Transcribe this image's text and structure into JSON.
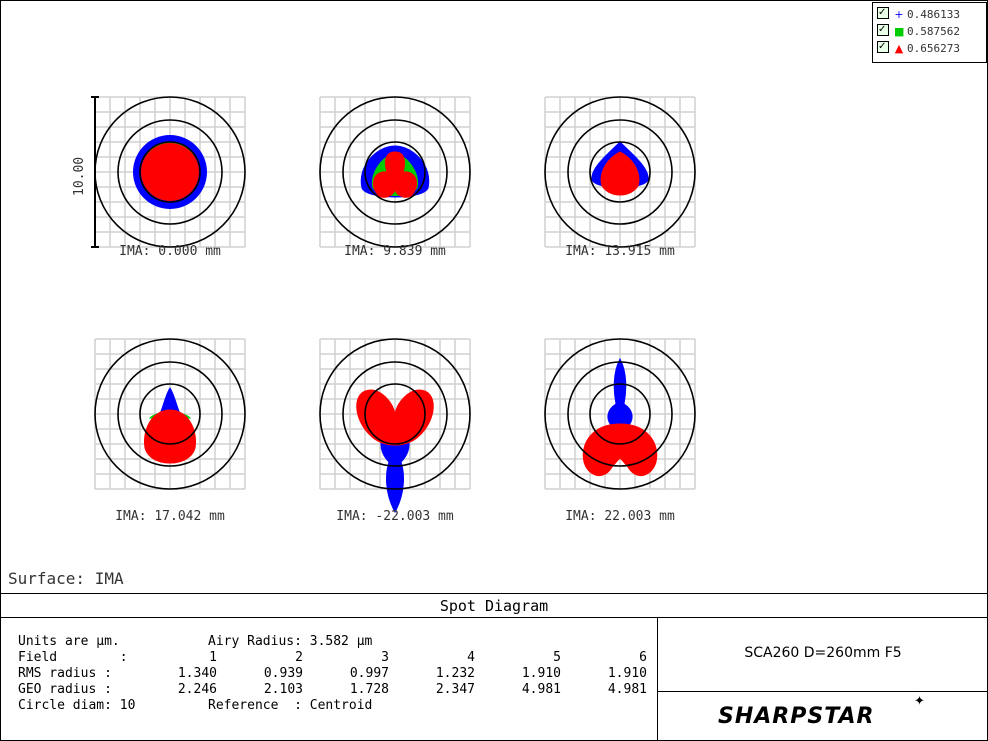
{
  "legend": {
    "items": [
      {
        "value": "0.486133",
        "marker": "+",
        "color": "#0000ff"
      },
      {
        "value": "0.587562",
        "marker": "■",
        "color": "#00cc00"
      },
      {
        "value": "0.656273",
        "marker": "▲",
        "color": "#ff0000"
      }
    ]
  },
  "plots": [
    {
      "label": "IMA: 0.000 mm"
    },
    {
      "label": "IMA: 9.839 mm"
    },
    {
      "label": "IMA: 13.915 mm"
    },
    {
      "label": "IMA: 17.042 mm"
    },
    {
      "label": "IMA: -22.003 mm"
    },
    {
      "label": "IMA: 22.003 mm"
    }
  ],
  "scale_bar": "10.00",
  "surface": "Surface: IMA",
  "title": "Spot Diagram",
  "info": {
    "units": "Units are µm.",
    "airy": "Airy Radius: 3.582 µm",
    "field_label": "Field        :",
    "rms_label": "RMS radius :",
    "geo_label": "GEO radius :",
    "circle": "Circle diam: 10",
    "reference": "Reference  : Centroid",
    "fields": [
      "1",
      "2",
      "3",
      "4",
      "5",
      "6"
    ],
    "rms": [
      "1.340",
      "0.939",
      "0.997",
      "1.232",
      "1.910",
      "1.910"
    ],
    "geo": [
      "2.246",
      "2.103",
      "1.728",
      "2.347",
      "4.981",
      "4.981"
    ]
  },
  "scope": "SCA260 D=260mm F5",
  "brand": "SHARPSTAR",
  "colors": {
    "blue": "#0000ff",
    "green": "#00cc00",
    "red": "#ff0000",
    "grid": "#d0d0d0"
  }
}
